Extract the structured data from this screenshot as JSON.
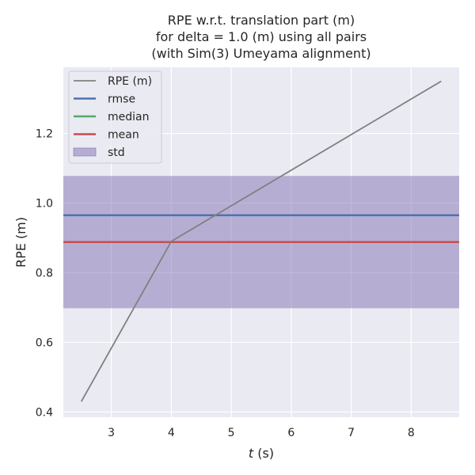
{
  "chart_data": {
    "type": "line",
    "title_lines": [
      "RPE w.r.t. translation part (m)",
      "for delta = 1.0 (m) using all pairs",
      "(with Sim(3) Umeyama alignment)"
    ],
    "xlabel_italic": "t",
    "xlabel_rest": " (s)",
    "ylabel": "RPE (m)",
    "xlim": [
      2.2,
      8.8
    ],
    "ylim": [
      0.385,
      1.39
    ],
    "xticks": [
      3,
      4,
      5,
      6,
      7,
      8
    ],
    "xtick_labels": [
      "3",
      "4",
      "5",
      "6",
      "7",
      "8"
    ],
    "yticks": [
      0.4,
      0.6,
      0.8,
      1.0,
      1.2
    ],
    "ytick_labels": [
      "0.4",
      "0.6",
      "0.8",
      "1.0",
      "1.2"
    ],
    "grid": true,
    "legend_position": "upper-left",
    "series": [
      {
        "name": "RPE (m)",
        "color": "#808080",
        "x": [
          2.5,
          4.0,
          8.5
        ],
        "y": [
          0.43,
          0.89,
          1.35
        ]
      }
    ],
    "stats": {
      "rmse": {
        "name": "rmse",
        "color": "#4c72b0",
        "value": 0.965
      },
      "median": {
        "name": "median",
        "color": "#55a868",
        "value": 0.888
      },
      "mean": {
        "name": "mean",
        "color": "#c44e52",
        "value": 0.888
      },
      "std": {
        "name": "std",
        "color": "#8172b2",
        "low": 0.698,
        "high": 1.078
      }
    }
  }
}
